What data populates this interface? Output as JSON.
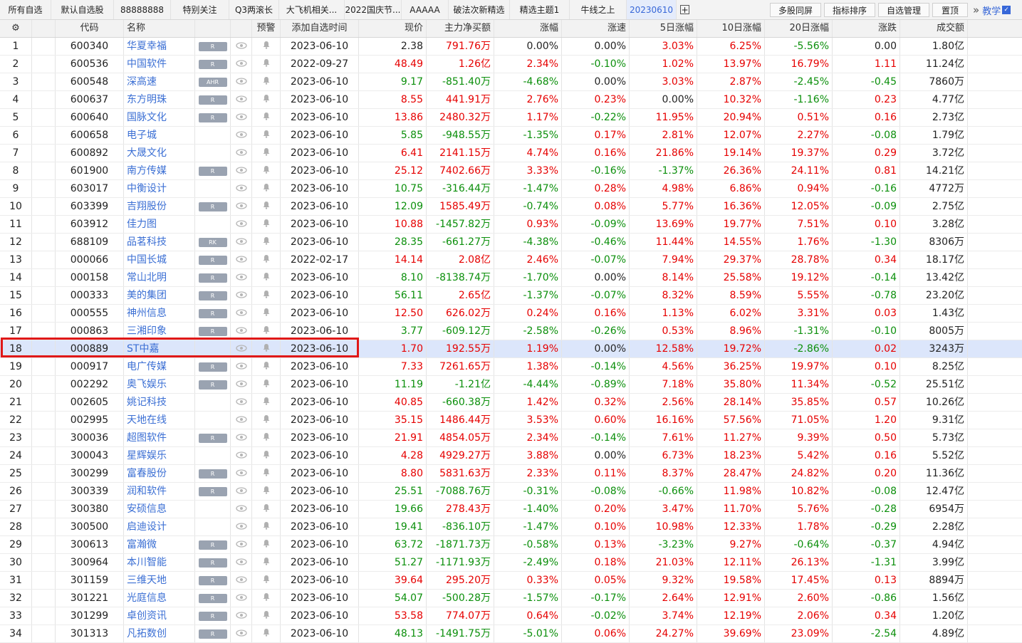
{
  "tabs": [
    {
      "label": "所有自选",
      "active": false
    },
    {
      "label": "默认自选股",
      "active": false
    },
    {
      "label": "88888888",
      "active": false
    },
    {
      "label": "特别关注",
      "active": false
    },
    {
      "label": "Q3两滚长",
      "active": false
    },
    {
      "label": "大飞机相关...",
      "active": false
    },
    {
      "label": "2022国庆节...",
      "active": false
    },
    {
      "label": "AAAAA",
      "active": false
    },
    {
      "label": "破法次新精选",
      "active": false
    },
    {
      "label": "精选主题1",
      "active": false
    },
    {
      "label": "牛线之上",
      "active": false
    },
    {
      "label": "20230610",
      "active": true
    }
  ],
  "add_tab_label": "+",
  "right_buttons": {
    "multi_screen": "多股同屏",
    "indicator_sort": "指标排序",
    "watchlist_manage": "自选管理",
    "pin_top": "置顶",
    "teach": "教学",
    "more": "»"
  },
  "columns": {
    "settings_icon": "⚙",
    "code": "代码",
    "name": "名称",
    "alert": "预警",
    "add_time": "添加自选时间",
    "price": "现价",
    "main_net": "主力净买额",
    "chg": "涨幅",
    "speed": "涨速",
    "d5": "5日涨幅",
    "d10": "10日涨幅",
    "d20": "20日涨幅",
    "diff": "涨跌",
    "turnover": "成交额"
  },
  "rows": [
    {
      "no": "1",
      "code": "600340",
      "name": "华夏幸福",
      "badge": "R",
      "time": "2023-06-10",
      "price": "2.38",
      "main": "791.76万",
      "chg": "0.00%",
      "speed": "0.00%",
      "d5": "3.03%",
      "d10": "6.25%",
      "d20": "-5.56%",
      "diff": "0.00",
      "turnover": "1.80亿"
    },
    {
      "no": "2",
      "code": "600536",
      "name": "中国软件",
      "badge": "R",
      "time": "2022-09-27",
      "price": "48.49",
      "main": "1.26亿",
      "chg": "2.34%",
      "speed": "-0.10%",
      "d5": "1.02%",
      "d10": "13.97%",
      "d20": "16.79%",
      "diff": "1.11",
      "turnover": "11.24亿"
    },
    {
      "no": "3",
      "code": "600548",
      "name": "深高速",
      "badge": "AHR",
      "time": "2023-06-10",
      "price": "9.17",
      "main": "-851.40万",
      "chg": "-4.68%",
      "speed": "0.00%",
      "d5": "3.03%",
      "d10": "2.87%",
      "d20": "-2.45%",
      "diff": "-0.45",
      "turnover": "7860万"
    },
    {
      "no": "4",
      "code": "600637",
      "name": "东方明珠",
      "badge": "R",
      "time": "2023-06-10",
      "price": "8.55",
      "main": "441.91万",
      "chg": "2.76%",
      "speed": "0.23%",
      "d5": "0.00%",
      "d10": "10.32%",
      "d20": "-1.16%",
      "diff": "0.23",
      "turnover": "4.77亿"
    },
    {
      "no": "5",
      "code": "600640",
      "name": "国脉文化",
      "badge": "R",
      "time": "2023-06-10",
      "price": "13.86",
      "main": "2480.32万",
      "chg": "1.17%",
      "speed": "-0.22%",
      "d5": "11.95%",
      "d10": "20.94%",
      "d20": "0.51%",
      "diff": "0.16",
      "turnover": "2.73亿"
    },
    {
      "no": "6",
      "code": "600658",
      "name": "电子城",
      "badge": "",
      "time": "2023-06-10",
      "price": "5.85",
      "main": "-948.55万",
      "chg": "-1.35%",
      "speed": "0.17%",
      "d5": "2.81%",
      "d10": "12.07%",
      "d20": "2.27%",
      "diff": "-0.08",
      "turnover": "1.79亿"
    },
    {
      "no": "7",
      "code": "600892",
      "name": "大晟文化",
      "badge": "",
      "time": "2023-06-10",
      "price": "6.41",
      "main": "2141.15万",
      "chg": "4.74%",
      "speed": "0.16%",
      "d5": "21.86%",
      "d10": "19.14%",
      "d20": "19.37%",
      "diff": "0.29",
      "turnover": "3.72亿"
    },
    {
      "no": "8",
      "code": "601900",
      "name": "南方传媒",
      "badge": "R",
      "time": "2023-06-10",
      "price": "25.12",
      "main": "7402.66万",
      "chg": "3.33%",
      "speed": "-0.16%",
      "d5": "-1.37%",
      "d10": "26.36%",
      "d20": "24.11%",
      "diff": "0.81",
      "turnover": "14.21亿"
    },
    {
      "no": "9",
      "code": "603017",
      "name": "中衡设计",
      "badge": "",
      "time": "2023-06-10",
      "price": "10.75",
      "main": "-316.44万",
      "chg": "-1.47%",
      "speed": "0.28%",
      "d5": "4.98%",
      "d10": "6.86%",
      "d20": "0.94%",
      "diff": "-0.16",
      "turnover": "4772万"
    },
    {
      "no": "10",
      "code": "603399",
      "name": "吉翔股份",
      "badge": "R",
      "time": "2023-06-10",
      "price": "12.09",
      "main": "1585.49万",
      "chg": "-0.74%",
      "speed": "0.08%",
      "d5": "5.77%",
      "d10": "16.36%",
      "d20": "12.05%",
      "diff": "-0.09",
      "turnover": "2.75亿"
    },
    {
      "no": "11",
      "code": "603912",
      "name": "佳力图",
      "badge": "",
      "time": "2023-06-10",
      "price": "10.88",
      "main": "-1457.82万",
      "chg": "0.93%",
      "speed": "-0.09%",
      "d5": "13.69%",
      "d10": "19.77%",
      "d20": "7.51%",
      "diff": "0.10",
      "turnover": "3.28亿"
    },
    {
      "no": "12",
      "code": "688109",
      "name": "品茗科技",
      "badge": "RK",
      "time": "2023-06-10",
      "price": "28.35",
      "main": "-661.27万",
      "chg": "-4.38%",
      "speed": "-0.46%",
      "d5": "11.44%",
      "d10": "14.55%",
      "d20": "1.76%",
      "diff": "-1.30",
      "turnover": "8306万"
    },
    {
      "no": "13",
      "code": "000066",
      "name": "中国长城",
      "badge": "R",
      "time": "2022-02-17",
      "price": "14.14",
      "main": "2.08亿",
      "chg": "2.46%",
      "speed": "-0.07%",
      "d5": "7.94%",
      "d10": "29.37%",
      "d20": "28.78%",
      "diff": "0.34",
      "turnover": "18.17亿"
    },
    {
      "no": "14",
      "code": "000158",
      "name": "常山北明",
      "badge": "R",
      "time": "2023-06-10",
      "price": "8.10",
      "main": "-8138.74万",
      "chg": "-1.70%",
      "speed": "0.00%",
      "d5": "8.14%",
      "d10": "25.58%",
      "d20": "19.12%",
      "diff": "-0.14",
      "turnover": "13.42亿"
    },
    {
      "no": "15",
      "code": "000333",
      "name": "美的集团",
      "badge": "R",
      "time": "2023-06-10",
      "price": "56.11",
      "main": "2.65亿",
      "chg": "-1.37%",
      "speed": "-0.07%",
      "d5": "8.32%",
      "d10": "8.59%",
      "d20": "5.55%",
      "diff": "-0.78",
      "turnover": "23.20亿"
    },
    {
      "no": "16",
      "code": "000555",
      "name": "神州信息",
      "badge": "R",
      "time": "2023-06-10",
      "price": "12.50",
      "main": "626.02万",
      "chg": "0.24%",
      "speed": "0.16%",
      "d5": "1.13%",
      "d10": "6.02%",
      "d20": "3.31%",
      "diff": "0.03",
      "turnover": "1.43亿"
    },
    {
      "no": "17",
      "code": "000863",
      "name": "三湘印象",
      "badge": "R",
      "time": "2023-06-10",
      "price": "3.77",
      "main": "-609.12万",
      "chg": "-2.58%",
      "speed": "-0.26%",
      "d5": "0.53%",
      "d10": "8.96%",
      "d20": "-1.31%",
      "diff": "-0.10",
      "turnover": "8005万"
    },
    {
      "no": "18",
      "code": "000889",
      "name": "ST中嘉",
      "badge": "",
      "time": "2023-06-10",
      "price": "1.70",
      "main": "192.55万",
      "chg": "1.19%",
      "speed": "0.00%",
      "d5": "12.58%",
      "d10": "19.72%",
      "d20": "-2.86%",
      "diff": "0.02",
      "turnover": "3243万"
    },
    {
      "no": "19",
      "code": "000917",
      "name": "电广传媒",
      "badge": "R",
      "time": "2023-06-10",
      "price": "7.33",
      "main": "7261.65万",
      "chg": "1.38%",
      "speed": "-0.14%",
      "d5": "4.56%",
      "d10": "36.25%",
      "d20": "19.97%",
      "diff": "0.10",
      "turnover": "8.25亿"
    },
    {
      "no": "20",
      "code": "002292",
      "name": "奥飞娱乐",
      "badge": "R",
      "time": "2023-06-10",
      "price": "11.19",
      "main": "-1.21亿",
      "chg": "-4.44%",
      "speed": "-0.89%",
      "d5": "7.18%",
      "d10": "35.80%",
      "d20": "11.34%",
      "diff": "-0.52",
      "turnover": "25.51亿"
    },
    {
      "no": "21",
      "code": "002605",
      "name": "姚记科技",
      "badge": "",
      "time": "2023-06-10",
      "price": "40.85",
      "main": "-660.38万",
      "chg": "1.42%",
      "speed": "0.32%",
      "d5": "2.56%",
      "d10": "28.14%",
      "d20": "35.85%",
      "diff": "0.57",
      "turnover": "10.26亿"
    },
    {
      "no": "22",
      "code": "002995",
      "name": "天地在线",
      "badge": "",
      "time": "2023-06-10",
      "price": "35.15",
      "main": "1486.44万",
      "chg": "3.53%",
      "speed": "0.60%",
      "d5": "16.16%",
      "d10": "57.56%",
      "d20": "71.05%",
      "diff": "1.20",
      "turnover": "9.31亿"
    },
    {
      "no": "23",
      "code": "300036",
      "name": "超图软件",
      "badge": "R",
      "time": "2023-06-10",
      "price": "21.91",
      "main": "4854.05万",
      "chg": "2.34%",
      "speed": "-0.14%",
      "d5": "7.61%",
      "d10": "11.27%",
      "d20": "9.39%",
      "diff": "0.50",
      "turnover": "5.73亿"
    },
    {
      "no": "24",
      "code": "300043",
      "name": "星辉娱乐",
      "badge": "",
      "time": "2023-06-10",
      "price": "4.28",
      "main": "4929.27万",
      "chg": "3.88%",
      "speed": "0.00%",
      "d5": "6.73%",
      "d10": "18.23%",
      "d20": "5.42%",
      "diff": "0.16",
      "turnover": "5.52亿"
    },
    {
      "no": "25",
      "code": "300299",
      "name": "富春股份",
      "badge": "R",
      "time": "2023-06-10",
      "price": "8.80",
      "main": "5831.63万",
      "chg": "2.33%",
      "speed": "0.11%",
      "d5": "8.37%",
      "d10": "28.47%",
      "d20": "24.82%",
      "diff": "0.20",
      "turnover": "11.36亿"
    },
    {
      "no": "26",
      "code": "300339",
      "name": "润和软件",
      "badge": "R",
      "time": "2023-06-10",
      "price": "25.51",
      "main": "-7088.76万",
      "chg": "-0.31%",
      "speed": "-0.08%",
      "d5": "-0.66%",
      "d10": "11.98%",
      "d20": "10.82%",
      "diff": "-0.08",
      "turnover": "12.47亿"
    },
    {
      "no": "27",
      "code": "300380",
      "name": "安硕信息",
      "badge": "",
      "time": "2023-06-10",
      "price": "19.66",
      "main": "278.43万",
      "chg": "-1.40%",
      "speed": "0.20%",
      "d5": "3.47%",
      "d10": "11.70%",
      "d20": "5.76%",
      "diff": "-0.28",
      "turnover": "6954万"
    },
    {
      "no": "28",
      "code": "300500",
      "name": "启迪设计",
      "badge": "",
      "time": "2023-06-10",
      "price": "19.41",
      "main": "-836.10万",
      "chg": "-1.47%",
      "speed": "0.10%",
      "d5": "10.98%",
      "d10": "12.33%",
      "d20": "1.78%",
      "diff": "-0.29",
      "turnover": "2.28亿"
    },
    {
      "no": "29",
      "code": "300613",
      "name": "富瀚微",
      "badge": "R",
      "time": "2023-06-10",
      "price": "63.72",
      "main": "-1871.73万",
      "chg": "-0.58%",
      "speed": "0.13%",
      "d5": "-3.23%",
      "d10": "9.27%",
      "d20": "-0.64%",
      "diff": "-0.37",
      "turnover": "4.94亿"
    },
    {
      "no": "30",
      "code": "300964",
      "name": "本川智能",
      "badge": "R",
      "time": "2023-06-10",
      "price": "51.27",
      "main": "-1171.93万",
      "chg": "-2.49%",
      "speed": "0.18%",
      "d5": "21.03%",
      "d10": "12.11%",
      "d20": "26.13%",
      "diff": "-1.31",
      "turnover": "3.99亿"
    },
    {
      "no": "31",
      "code": "301159",
      "name": "三维天地",
      "badge": "R",
      "time": "2023-06-10",
      "price": "39.64",
      "main": "295.20万",
      "chg": "0.33%",
      "speed": "0.05%",
      "d5": "9.32%",
      "d10": "19.58%",
      "d20": "17.45%",
      "diff": "0.13",
      "turnover": "8894万"
    },
    {
      "no": "32",
      "code": "301221",
      "name": "光庭信息",
      "badge": "R",
      "time": "2023-06-10",
      "price": "54.07",
      "main": "-500.28万",
      "chg": "-1.57%",
      "speed": "-0.17%",
      "d5": "2.64%",
      "d10": "12.91%",
      "d20": "2.60%",
      "diff": "-0.86",
      "turnover": "1.56亿"
    },
    {
      "no": "33",
      "code": "301299",
      "name": "卓创资讯",
      "badge": "R",
      "time": "2023-06-10",
      "price": "53.58",
      "main": "774.07万",
      "chg": "0.64%",
      "speed": "-0.02%",
      "d5": "3.74%",
      "d10": "12.19%",
      "d20": "2.06%",
      "diff": "0.34",
      "turnover": "1.20亿"
    },
    {
      "no": "34",
      "code": "301313",
      "name": "凡拓数创",
      "badge": "R",
      "time": "2023-06-10",
      "price": "48.13",
      "main": "-1491.75万",
      "chg": "-5.01%",
      "speed": "0.06%",
      "d5": "24.27%",
      "d10": "39.69%",
      "d20": "23.09%",
      "diff": "-2.54",
      "turnover": "4.89亿"
    }
  ],
  "selected_row": 18,
  "colors": {
    "up": "#e60000",
    "down": "#0b8f0b",
    "flat": "#222222",
    "name": "#3b6fd4",
    "active_tab": "#3767d8",
    "highlight": "#e01818"
  }
}
